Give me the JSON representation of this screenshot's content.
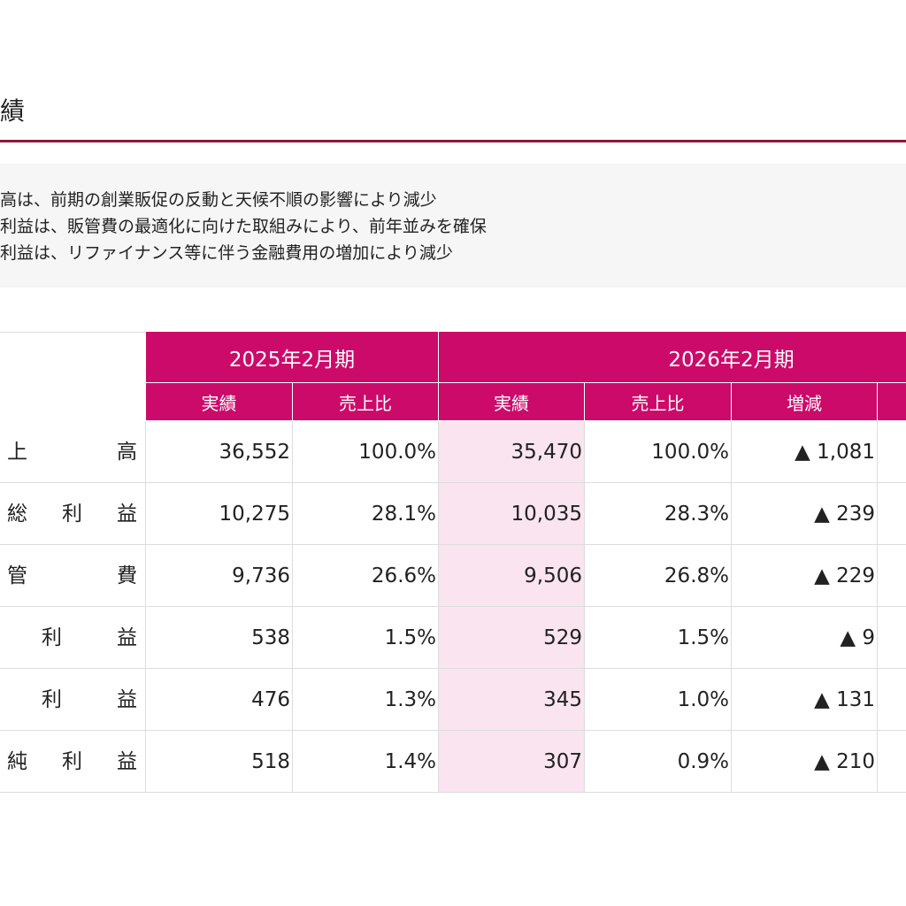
{
  "title": "績",
  "summary": [
    "高は、前期の創業販促の反動と天候不順の影響により減少",
    "利益は、販管費の最適化に向けた取組みにより、前年並みを確保",
    "利益は、リファイナンス等に伴う金融費用の増加により減少"
  ],
  "table": {
    "header_groups": [
      "2025年2月期",
      "2026年2月期"
    ],
    "subheaders": [
      "実績",
      "売上比",
      "実績",
      "売上比",
      "増減"
    ],
    "rows": [
      [
        "上高",
        "36,552",
        "100.0%",
        "35,470",
        "100.0%",
        "▲ 1,081"
      ],
      [
        "総利益",
        "10,275",
        "28.1%",
        "10,035",
        "28.3%",
        "▲ 239"
      ],
      [
        "管費",
        "9,736",
        "26.6%",
        "9,506",
        "26.8%",
        "▲ 229"
      ],
      [
        "利益",
        "538",
        "1.5%",
        "529",
        "1.5%",
        "▲ 9"
      ],
      [
        "利益",
        "476",
        "1.3%",
        "345",
        "1.0%",
        "▲ 131"
      ],
      [
        "純利益",
        "518",
        "1.4%",
        "307",
        "0.9%",
        "▲ 210"
      ]
    ]
  }
}
